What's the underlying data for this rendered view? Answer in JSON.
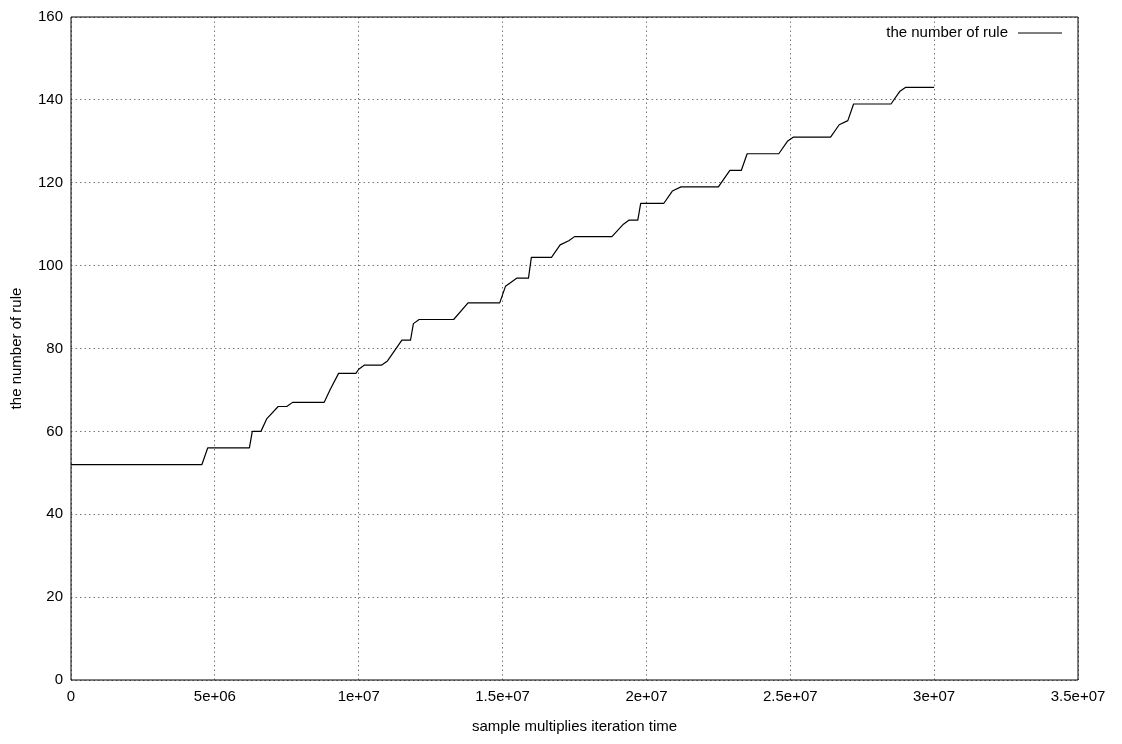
{
  "chart_data": {
    "type": "line",
    "xlabel": "sample multiplies iteration time",
    "ylabel": "the number of rule",
    "xlim": [
      0,
      35000000
    ],
    "xticks": [
      0,
      {
        "value": 5000000,
        "label": "5e+06"
      },
      {
        "value": 10000000,
        "label": "1e+07"
      },
      {
        "value": 15000000,
        "label": "1.5e+07"
      },
      {
        "value": 20000000,
        "label": "2e+07"
      },
      {
        "value": 25000000,
        "label": "2.5e+07"
      },
      {
        "value": 30000000,
        "label": "3e+07"
      },
      {
        "value": 35000000,
        "label": "3.5e+07"
      }
    ],
    "ylim": [
      0,
      160
    ],
    "yticks": [
      0,
      20,
      40,
      60,
      80,
      100,
      120,
      140,
      160
    ],
    "grid": true,
    "legend": "top right",
    "marker": "none",
    "line_style": "solid",
    "x": [
      0,
      4550000,
      4750000,
      6200000,
      6300000,
      6600000,
      6800000,
      7200000,
      7500000,
      7700000,
      8800000,
      9000000,
      9300000,
      9900000,
      10000000,
      10200000,
      10800000,
      11000000,
      11500000,
      11800000,
      11900000,
      12100000,
      13300000,
      13800000,
      14900000,
      15100000,
      15500000,
      15900000,
      16000000,
      16700000,
      17000000,
      17300000,
      17500000,
      18800000,
      19200000,
      19400000,
      19700000,
      19800000,
      20600000,
      20900000,
      21200000,
      22500000,
      22900000,
      23300000,
      23500000,
      24600000,
      24900000,
      25100000,
      26400000,
      26700000,
      27000000,
      27200000,
      28500000,
      28800000,
      29000000,
      30000000
    ],
    "series": [
      {
        "name": "the number of rule",
        "color": "#000000",
        "values": [
          52,
          52,
          56,
          56,
          60,
          60,
          63,
          66,
          66,
          67,
          67,
          70,
          74,
          74,
          75,
          76,
          76,
          77,
          82,
          82,
          86,
          87,
          87,
          91,
          91,
          95,
          97,
          97,
          102,
          102,
          105,
          106,
          107,
          107,
          110,
          111,
          111,
          115,
          115,
          118,
          119,
          119,
          123,
          123,
          127,
          127,
          130,
          131,
          131,
          134,
          135,
          139,
          139,
          142,
          143,
          143
        ]
      }
    ]
  }
}
